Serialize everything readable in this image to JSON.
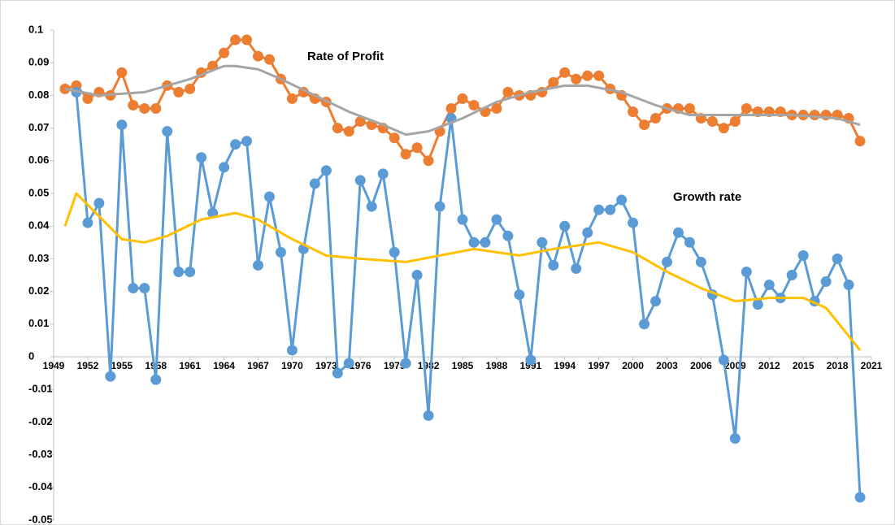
{
  "chart_data": {
    "type": "line",
    "annotations": [
      "Rate of Profit",
      "Growth rate"
    ],
    "x": [
      1950,
      1951,
      1952,
      1953,
      1954,
      1955,
      1956,
      1957,
      1958,
      1959,
      1960,
      1961,
      1962,
      1963,
      1964,
      1965,
      1966,
      1967,
      1968,
      1969,
      1970,
      1971,
      1972,
      1973,
      1974,
      1975,
      1976,
      1977,
      1978,
      1979,
      1980,
      1981,
      1982,
      1983,
      1984,
      1985,
      1986,
      1987,
      1988,
      1989,
      1990,
      1991,
      1992,
      1993,
      1994,
      1995,
      1996,
      1997,
      1998,
      1999,
      2000,
      2001,
      2002,
      2003,
      2004,
      2005,
      2006,
      2007,
      2008,
      2009,
      2010,
      2011,
      2012,
      2013,
      2014,
      2015,
      2016,
      2017,
      2018,
      2019,
      2020
    ],
    "series": [
      {
        "color": "#ed7d31",
        "markers": true,
        "values": [
          0.082,
          0.083,
          0.079,
          0.081,
          0.08,
          0.087,
          0.077,
          0.076,
          0.076,
          0.083,
          0.081,
          0.082,
          0.087,
          0.089,
          0.093,
          0.097,
          0.097,
          0.092,
          0.091,
          0.085,
          0.079,
          0.081,
          0.079,
          0.078,
          0.07,
          0.069,
          0.072,
          0.071,
          0.07,
          0.067,
          0.062,
          0.064,
          0.06,
          0.069,
          0.076,
          0.079,
          0.077,
          0.075,
          0.076,
          0.081,
          0.08,
          0.08,
          0.081,
          0.084,
          0.087,
          0.085,
          0.086,
          0.086,
          0.082,
          0.08,
          0.075,
          0.071,
          0.073,
          0.076,
          0.076,
          0.076,
          0.073,
          0.072,
          0.07,
          0.072,
          0.076,
          0.075,
          0.075,
          0.075,
          0.074,
          0.074,
          0.074,
          0.074,
          0.074,
          0.073,
          0.066
        ]
      },
      {
        "color": "#5b9bd5",
        "markers": true,
        "values": [
          null,
          0.081,
          0.041,
          0.047,
          -0.006,
          0.071,
          0.021,
          0.021,
          -0.007,
          0.069,
          0.026,
          0.026,
          0.061,
          0.044,
          0.058,
          0.065,
          0.066,
          0.028,
          0.049,
          0.032,
          0.002,
          0.033,
          0.053,
          0.057,
          -0.005,
          -0.002,
          0.054,
          0.046,
          0.056,
          0.032,
          -0.002,
          0.025,
          -0.018,
          0.046,
          0.073,
          0.042,
          0.035,
          0.035,
          0.042,
          0.037,
          0.019,
          -0.001,
          0.035,
          0.028,
          0.04,
          0.027,
          0.038,
          0.045,
          0.045,
          0.048,
          0.041,
          0.01,
          0.017,
          0.029,
          0.038,
          0.035,
          0.029,
          0.019,
          -0.001,
          -0.025,
          0.026,
          0.016,
          0.022,
          0.018,
          0.025,
          0.031,
          0.017,
          0.023,
          0.03,
          0.022,
          -0.043
        ]
      },
      {
        "color": "#a5a5a5",
        "markers": false,
        "x": [
          1950,
          1953,
          1957,
          1961,
          1964,
          1965,
          1967,
          1969,
          1972,
          1975,
          1978,
          1980,
          1982,
          1985,
          1988,
          1991,
          1994,
          1996,
          1999,
          2002,
          2005,
          2009,
          2014,
          2018,
          2020
        ],
        "values": [
          0.082,
          0.08,
          0.081,
          0.085,
          0.089,
          0.089,
          0.088,
          0.085,
          0.08,
          0.075,
          0.071,
          0.068,
          0.069,
          0.073,
          0.078,
          0.081,
          0.083,
          0.083,
          0.081,
          0.077,
          0.074,
          0.074,
          0.074,
          0.073,
          0.071
        ]
      },
      {
        "color": "#ffc000",
        "markers": false,
        "x": [
          1950,
          1951,
          1953,
          1955,
          1957,
          1959,
          1962,
          1965,
          1967,
          1970,
          1973,
          1976,
          1980,
          1983,
          1986,
          1990,
          1993,
          1997,
          2000,
          2003,
          2006,
          2009,
          2012,
          2015,
          2017,
          2020
        ],
        "values": [
          0.04,
          0.05,
          0.043,
          0.036,
          0.035,
          0.037,
          0.042,
          0.044,
          0.042,
          0.036,
          0.031,
          0.03,
          0.029,
          0.031,
          0.033,
          0.031,
          0.033,
          0.035,
          0.032,
          0.026,
          0.021,
          0.017,
          0.018,
          0.018,
          0.015,
          0.002
        ]
      }
    ],
    "xlim": [
      1949,
      2021
    ],
    "xticks": [
      1949,
      1952,
      1955,
      1958,
      1961,
      1964,
      1967,
      1970,
      1973,
      1976,
      1979,
      1982,
      1985,
      1988,
      1991,
      1994,
      1997,
      2000,
      2003,
      2006,
      2009,
      2012,
      2015,
      2018,
      2021
    ],
    "ylim": [
      -0.05,
      0.1
    ],
    "yticks": [
      0.1,
      0.09,
      0.08,
      0.07,
      0.06,
      0.05,
      0.04,
      0.03,
      0.02,
      0.01,
      0,
      -0.01,
      -0.02,
      -0.03,
      -0.04,
      -0.05
    ],
    "grid": false
  }
}
